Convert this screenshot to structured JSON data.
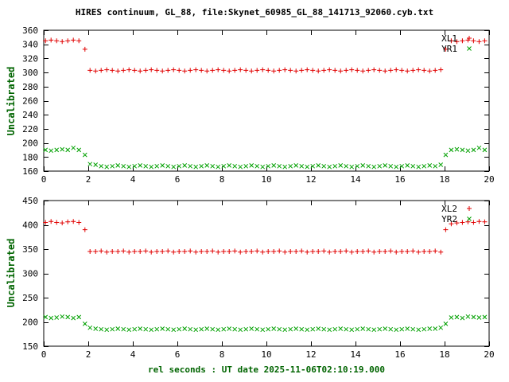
{
  "title": "HIRES continuum, GL_88, file:Skynet_60985_GL_88_141713_92060.cyb.txt",
  "colors": {
    "background": "#ffffff",
    "frame": "#000000",
    "tick_text": "#000000",
    "axis_label": "#006400",
    "red_series": "#e00000",
    "green_series": "#00a000"
  },
  "chart_data": [
    {
      "type": "scatter",
      "panel": "top",
      "title": "",
      "xlabel": "",
      "ylabel": "Uncalibrated",
      "xlim": [
        0,
        20
      ],
      "ylim": [
        160,
        360
      ],
      "xticks": [
        0,
        2,
        4,
        6,
        8,
        10,
        12,
        14,
        16,
        18,
        20
      ],
      "yticks": [
        160,
        180,
        200,
        220,
        240,
        260,
        280,
        300,
        320,
        340,
        360
      ],
      "grid": false,
      "legend_position": "top-right",
      "series": [
        {
          "name": "XL1",
          "marker": "plus",
          "color": "#e00000",
          "segments": [
            {
              "x0": 0.08,
              "dx": 0.25,
              "y": [
                345,
                346,
                345,
                344,
                345,
                346,
                345
              ]
            },
            {
              "x0": 1.85,
              "dx": 0.25,
              "y": [
                333
              ]
            },
            {
              "x0": 2.08,
              "dx": 0.25,
              "y": [
                303,
                302,
                303,
                304,
                303,
                302,
                303,
                304,
                303,
                302,
                303,
                304,
                303,
                302,
                303,
                304,
                303,
                302,
                303,
                304,
                303,
                302,
                303,
                304,
                303,
                302,
                303,
                304,
                303,
                302,
                303,
                304,
                303,
                302,
                303,
                304,
                303,
                302,
                303,
                304,
                303,
                302,
                303,
                304,
                303,
                302,
                303,
                304,
                303,
                302,
                303,
                304,
                303,
                302,
                303,
                304,
                303,
                302,
                303,
                304,
                303,
                302,
                303,
                304
              ]
            },
            {
              "x0": 18.05,
              "dx": 0.25,
              "y": [
                333
              ]
            },
            {
              "x0": 18.3,
              "dx": 0.25,
              "y": [
                345,
                344,
                345,
                346,
                345,
                344,
                345
              ]
            }
          ]
        },
        {
          "name": "YR1",
          "marker": "cross",
          "color": "#00a000",
          "segments": [
            {
              "x0": 0.08,
              "dx": 0.25,
              "y": [
                190,
                189,
                190,
                191,
                190,
                193,
                190
              ]
            },
            {
              "x0": 1.85,
              "dx": 0.25,
              "y": [
                183
              ]
            },
            {
              "x0": 2.08,
              "dx": 0.25,
              "y": [
                170,
                169,
                167,
                166,
                167,
                168,
                167,
                166,
                167,
                168,
                167,
                166,
                167,
                168,
                167,
                166,
                167,
                168,
                167,
                166,
                167,
                168,
                167,
                166,
                167,
                168,
                167,
                166,
                167,
                168,
                167,
                166,
                167,
                168,
                167,
                166,
                167,
                168,
                167,
                166,
                167,
                168,
                167,
                166,
                167,
                168,
                167,
                166,
                167,
                168,
                167,
                166,
                167,
                168,
                167,
                166,
                167,
                168,
                167,
                166,
                167,
                168,
                167,
                169
              ]
            },
            {
              "x0": 18.05,
              "dx": 0.25,
              "y": [
                183
              ]
            },
            {
              "x0": 18.3,
              "dx": 0.25,
              "y": [
                190,
                191,
                190,
                189,
                190,
                193,
                190
              ]
            }
          ]
        }
      ]
    },
    {
      "type": "scatter",
      "panel": "bottom",
      "title": "",
      "xlabel": "rel seconds : UT date 2025-11-06T02:10:19.000",
      "ylabel": "Uncalibrated",
      "xlim": [
        0,
        20
      ],
      "ylim": [
        150,
        450
      ],
      "xticks": [
        0,
        2,
        4,
        6,
        8,
        10,
        12,
        14,
        16,
        18,
        20
      ],
      "yticks": [
        150,
        200,
        250,
        300,
        350,
        400,
        450
      ],
      "grid": false,
      "legend_position": "top-right",
      "series": [
        {
          "name": "XL2",
          "marker": "plus",
          "color": "#e00000",
          "segments": [
            {
              "x0": 0.08,
              "dx": 0.25,
              "y": [
                405,
                407,
                405,
                404,
                406,
                407,
                405
              ]
            },
            {
              "x0": 1.85,
              "dx": 0.25,
              "y": [
                390
              ]
            },
            {
              "x0": 2.08,
              "dx": 0.25,
              "y": [
                345,
                345,
                346,
                344,
                345,
                345,
                346,
                344,
                345,
                345,
                346,
                344,
                345,
                345,
                346,
                344,
                345,
                345,
                346,
                344,
                345,
                345,
                346,
                344,
                345,
                345,
                346,
                344,
                345,
                345,
                346,
                344,
                345,
                345,
                346,
                344,
                345,
                345,
                346,
                344,
                345,
                345,
                346,
                344,
                345,
                345,
                346,
                344,
                345,
                345,
                346,
                344,
                345,
                345,
                346,
                344,
                345,
                345,
                346,
                344,
                345,
                345,
                346,
                344
              ]
            },
            {
              "x0": 18.05,
              "dx": 0.25,
              "y": [
                390
              ]
            },
            {
              "x0": 18.3,
              "dx": 0.25,
              "y": [
                402,
                404,
                405,
                406,
                405,
                407,
                406
              ]
            }
          ]
        },
        {
          "name": "YR2",
          "marker": "cross",
          "color": "#00a000",
          "segments": [
            {
              "x0": 0.08,
              "dx": 0.25,
              "y": [
                210,
                208,
                209,
                211,
                210,
                208,
                210
              ]
            },
            {
              "x0": 1.85,
              "dx": 0.25,
              "y": [
                196
              ]
            },
            {
              "x0": 2.08,
              "dx": 0.25,
              "y": [
                188,
                186,
                185,
                184,
                185,
                186,
                185,
                184,
                185,
                186,
                185,
                184,
                185,
                186,
                185,
                184,
                185,
                186,
                185,
                184,
                185,
                186,
                185,
                184,
                185,
                186,
                185,
                184,
                185,
                186,
                185,
                184,
                185,
                186,
                185,
                184,
                185,
                186,
                185,
                184,
                185,
                186,
                185,
                184,
                185,
                186,
                185,
                184,
                185,
                186,
                185,
                184,
                185,
                186,
                185,
                184,
                185,
                186,
                185,
                184,
                185,
                186,
                186,
                188
              ]
            },
            {
              "x0": 18.05,
              "dx": 0.25,
              "y": [
                196
              ]
            },
            {
              "x0": 18.3,
              "dx": 0.25,
              "y": [
                209,
                210,
                208,
                211,
                210,
                209,
                210
              ]
            }
          ]
        }
      ]
    }
  ]
}
